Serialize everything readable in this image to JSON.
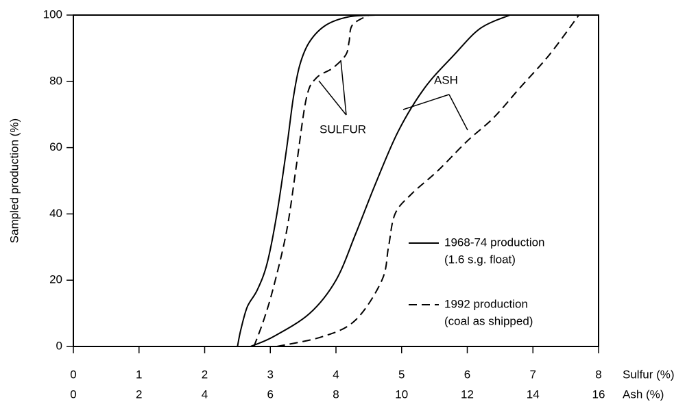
{
  "chart_data": {
    "type": "line",
    "ylabel": "Sampled production (%)",
    "xlabel": "Sulfur (%)",
    "x2label": "Ash (%)",
    "xlim": [
      0,
      8
    ],
    "xticks": [
      0,
      1,
      2,
      3,
      4,
      5,
      6,
      7,
      8
    ],
    "x2lim": [
      0,
      16
    ],
    "x2ticks": [
      0,
      2,
      4,
      6,
      8,
      10,
      12,
      14,
      16
    ],
    "ylim": [
      0,
      100
    ],
    "yticks": [
      0,
      20,
      40,
      60,
      80,
      100
    ],
    "series": [
      {
        "color": "#000000",
        "dashed": false,
        "axis": "x",
        "x": [
          2.5,
          2.55,
          2.65,
          2.8,
          2.95,
          3.1,
          3.25,
          3.35,
          3.45,
          3.6,
          3.85,
          4.2,
          4.6
        ],
        "values": [
          0,
          5,
          12,
          17,
          25,
          40,
          60,
          75,
          85,
          92,
          97,
          99.5,
          100
        ]
      },
      {
        "color": "#000000",
        "dashed": true,
        "axis": "x",
        "x": [
          2.75,
          2.9,
          3.05,
          3.25,
          3.4,
          3.55,
          3.7,
          3.95,
          4.15,
          4.2,
          4.25,
          4.5
        ],
        "values": [
          0,
          8,
          18,
          35,
          55,
          75,
          81,
          84,
          88,
          92,
          97,
          100
        ]
      },
      {
        "color": "#000000",
        "dashed": false,
        "axis": "x2",
        "x": [
          5.4,
          6.1,
          7.2,
          8.0,
          8.6,
          9.2,
          9.9,
          10.7,
          11.6,
          12.4,
          13.3
        ],
        "values": [
          0,
          3,
          10,
          20,
          34,
          49,
          65,
          78,
          88,
          96,
          100
        ]
      },
      {
        "color": "#000000",
        "dashed": true,
        "axis": "x2",
        "x": [
          6.2,
          7.6,
          8.6,
          9.4,
          9.6,
          9.8,
          10.3,
          11.1,
          12.0,
          12.8,
          13.6,
          14.5,
          15.4
        ],
        "values": [
          0,
          3,
          8,
          20,
          30,
          40,
          46,
          53,
          62,
          69,
          78,
          88,
          100
        ]
      }
    ],
    "annotations": [
      "SULFUR",
      "ASH"
    ],
    "legend": [
      {
        "label": "1968-74 production",
        "sublabel": "(1.6 s.g. float)",
        "dashed": false
      },
      {
        "label": "1992 production",
        "sublabel": "(coal as shipped)",
        "dashed": true
      }
    ]
  }
}
